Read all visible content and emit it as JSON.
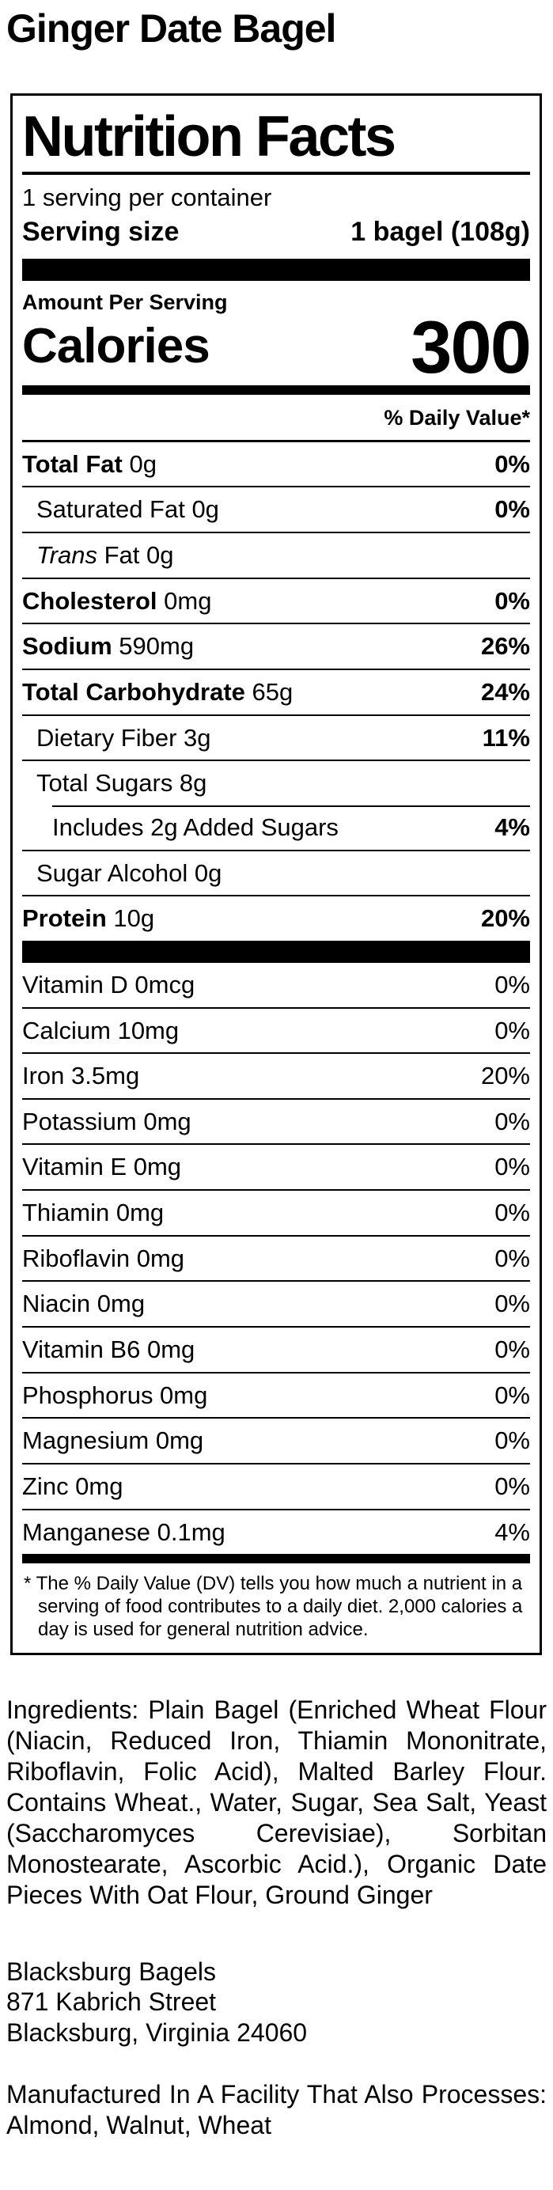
{
  "page_title": "Ginger Date Bagel",
  "label": {
    "title": "Nutrition Facts",
    "servings_per_container": "1 serving per container",
    "serving_size": {
      "label": "Serving size",
      "value": "1 bagel (108g)"
    },
    "amount_per_serving": "Amount Per Serving",
    "calories": {
      "label": "Calories",
      "value": "300"
    },
    "daily_value_header": "% Daily Value*",
    "rows": [
      {
        "lead": "Total Fat",
        "rest": "0g",
        "dv": "0%"
      },
      {
        "rest": "Saturated Fat 0g",
        "dv": "0%"
      },
      {
        "lead": "Trans",
        "rest": "Fat 0g",
        "dv": ""
      },
      {
        "lead": "Cholesterol",
        "rest": "0mg",
        "dv": "0%"
      },
      {
        "lead": "Sodium",
        "rest": "590mg",
        "dv": "26%"
      },
      {
        "lead": "Total Carbohydrate",
        "rest": "65g",
        "dv": "24%"
      },
      {
        "rest": "Dietary Fiber 3g",
        "dv": "11%"
      },
      {
        "rest": "Total Sugars 8g",
        "dv": ""
      },
      {
        "rest": "Includes 2g Added Sugars",
        "dv": "4%"
      },
      {
        "rest": "Sugar Alcohol 0g",
        "dv": ""
      },
      {
        "lead": "Protein",
        "rest": "10g",
        "dv": "20%"
      }
    ],
    "micronutrients": [
      {
        "text": "Vitamin D 0mcg",
        "dv": "0%"
      },
      {
        "text": "Calcium 10mg",
        "dv": "0%"
      },
      {
        "text": "Iron 3.5mg",
        "dv": "20%"
      },
      {
        "text": "Potassium 0mg",
        "dv": "0%"
      },
      {
        "text": "Vitamin E 0mg",
        "dv": "0%"
      },
      {
        "text": "Thiamin 0mg",
        "dv": "0%"
      },
      {
        "text": "Riboflavin 0mg",
        "dv": "0%"
      },
      {
        "text": "Niacin 0mg",
        "dv": "0%"
      },
      {
        "text": "Vitamin B6 0mg",
        "dv": "0%"
      },
      {
        "text": "Phosphorus 0mg",
        "dv": "0%"
      },
      {
        "text": "Magnesium 0mg",
        "dv": "0%"
      },
      {
        "text": "Zinc 0mg",
        "dv": "0%"
      },
      {
        "text": "Manganese 0.1mg",
        "dv": "4%"
      }
    ],
    "footnote": "* The % Daily Value (DV) tells you how much a nutrient in a serving of food contributes to a daily diet. 2,000 calories a day is used for general nutrition advice."
  },
  "ingredients": "Ingredients: Plain Bagel (Enriched Wheat Flour (Niacin, Reduced Iron, Thiamin Mononitrate, Riboflavin, Folic Acid), Malted Barley Flour. Contains Wheat., Water, Sugar, Sea Salt, Yeast (Saccharomyces Cerevisiae), Sorbitan Monostearate, Ascorbic Acid.), Organic Date Pieces With Oat Flour, Ground Ginger",
  "manufacturer": {
    "name": "Blacksburg Bagels",
    "street": "871 Kabrich Street",
    "city_state_zip": "Blacksburg, Virginia 24060"
  },
  "allergen_notice": "Manufactured In A Facility That Also Processes: Almond, Walnut, Wheat",
  "colors": {
    "text": "#000000",
    "background": "#ffffff"
  }
}
